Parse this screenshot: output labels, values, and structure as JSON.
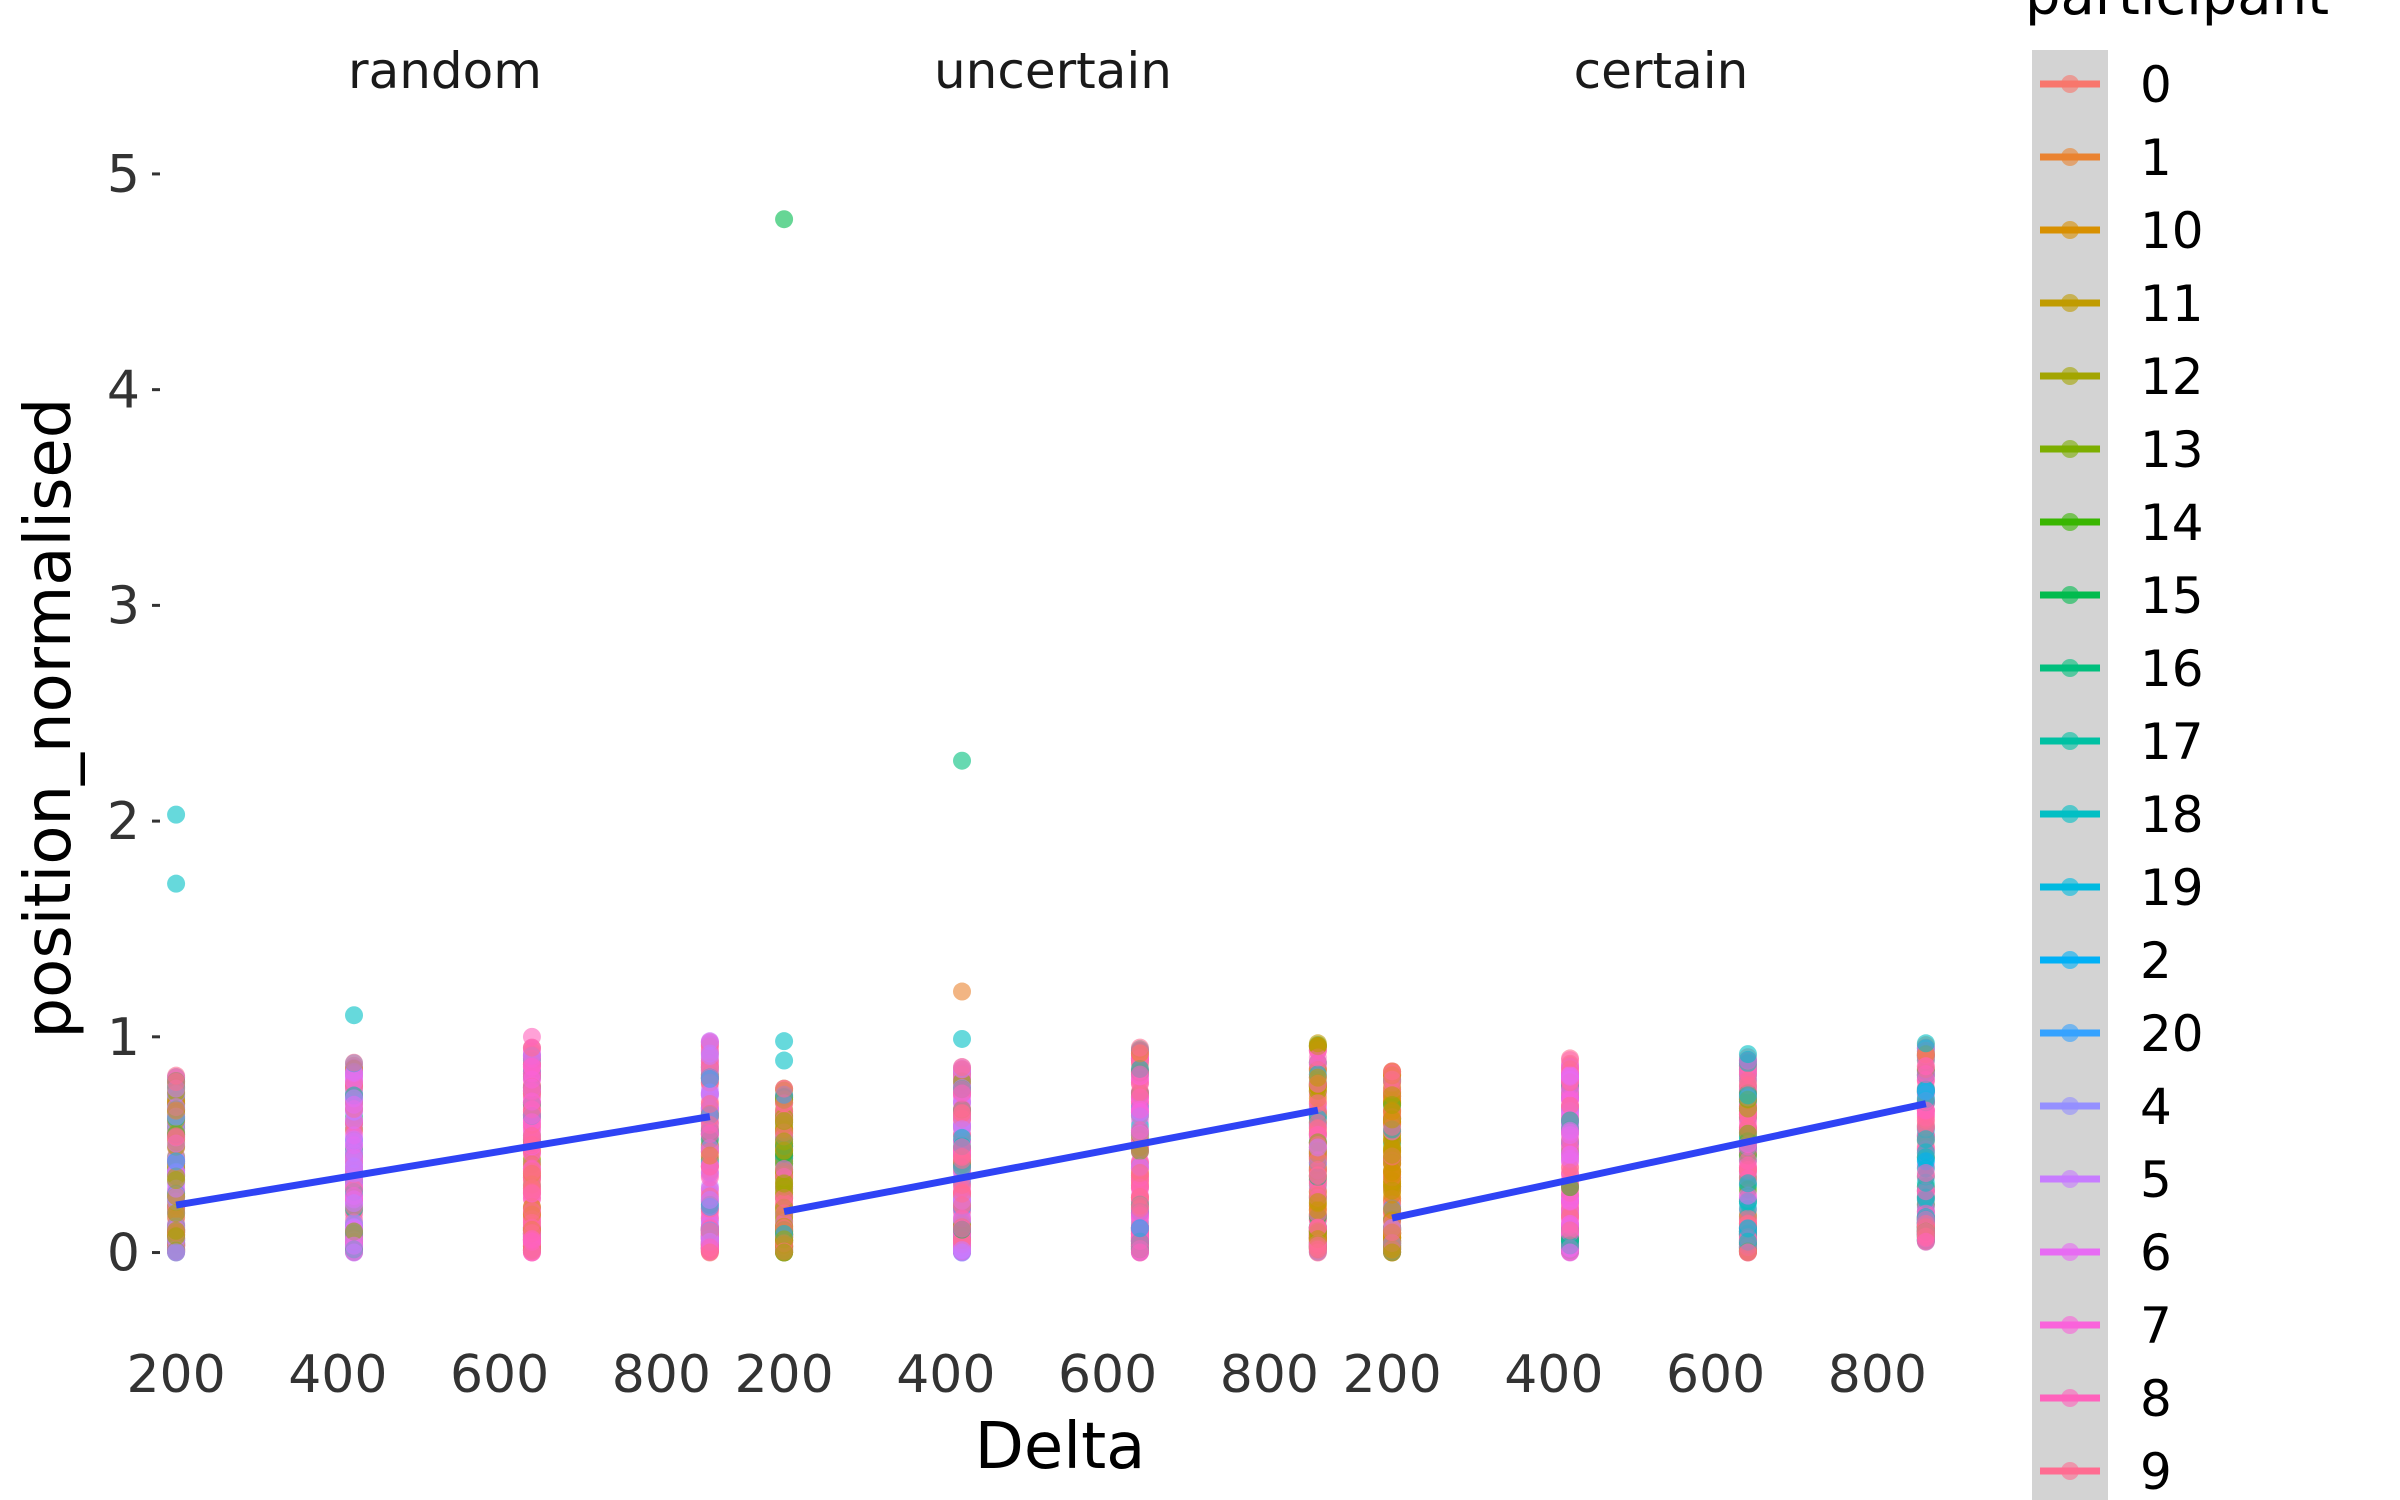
{
  "chart_data": {
    "type": "scatter",
    "xlabel": "Delta",
    "ylabel": "position_normalised",
    "xlim": [
      190,
      875
    ],
    "ylim": [
      -0.22,
      5.25
    ],
    "x_ticks": [
      200,
      400,
      600,
      800
    ],
    "y_ticks": [
      0,
      1,
      2,
      3,
      4,
      5
    ],
    "x_levels": [
      200,
      420,
      640,
      860
    ],
    "legend": {
      "title": "participant",
      "entries": [
        "0",
        "1",
        "10",
        "11",
        "12",
        "13",
        "14",
        "15",
        "16",
        "17",
        "18",
        "19",
        "2",
        "20",
        "4",
        "5",
        "6",
        "7",
        "8",
        "9"
      ],
      "colors": [
        "#F8766D",
        "#EA8331",
        "#D89000",
        "#C09B00",
        "#A3A500",
        "#7CAE00",
        "#39B600",
        "#00BB4E",
        "#00BF7D",
        "#00C1A3",
        "#00BFC4",
        "#00BAE0",
        "#00B0F6",
        "#35A2FF",
        "#9590FF",
        "#C77CFF",
        "#E76BF3",
        "#FA62DB",
        "#FF62BC",
        "#FF6C91"
      ]
    },
    "fit_color": "#2f43f5",
    "facets": [
      {
        "title": "random",
        "fit": {
          "x": [
            200,
            860
          ],
          "y": [
            0.22,
            0.63
          ]
        },
        "columns": [
          {
            "x": 200,
            "ymin": 0.0,
            "ymax": 0.82,
            "dominant": [
              "9590FF",
              "C77CFF",
              "A3A500",
              "FF6C91"
            ]
          },
          {
            "x": 420,
            "ymin": 0.0,
            "ymax": 0.88,
            "dominant": [
              "C77CFF",
              "E76BF3",
              "FF6C91"
            ]
          },
          {
            "x": 640,
            "ymin": 0.0,
            "ymax": 0.95,
            "dominant": [
              "FF62BC",
              "FA62DB",
              "FF6C91"
            ]
          },
          {
            "x": 860,
            "ymin": 0.0,
            "ymax": 0.98,
            "dominant": [
              "FF6C91",
              "FF62BC",
              "C77CFF"
            ]
          }
        ],
        "outliers": [
          {
            "x": 200,
            "y": 2.03,
            "participant": "18"
          },
          {
            "x": 200,
            "y": 1.71,
            "participant": "18"
          },
          {
            "x": 420,
            "y": 1.1,
            "participant": "18"
          },
          {
            "x": 640,
            "y": 1.0,
            "participant": "8"
          }
        ]
      },
      {
        "title": "uncertain",
        "fit": {
          "x": [
            200,
            860
          ],
          "y": [
            0.19,
            0.66
          ]
        },
        "columns": [
          {
            "x": 200,
            "ymin": 0.0,
            "ymax": 0.76,
            "dominant": [
              "A3A500",
              "C09B00",
              "FF6C91"
            ]
          },
          {
            "x": 420,
            "ymin": 0.0,
            "ymax": 0.86,
            "dominant": [
              "C77CFF",
              "FF62BC",
              "FF6C91"
            ]
          },
          {
            "x": 640,
            "ymin": 0.0,
            "ymax": 0.95,
            "dominant": [
              "FF62BC",
              "FA62DB",
              "FF6C91"
            ]
          },
          {
            "x": 860,
            "ymin": 0.0,
            "ymax": 0.97,
            "dominant": [
              "FF6C91",
              "FF62BC",
              "C09B00"
            ]
          }
        ],
        "outliers": [
          {
            "x": 200,
            "y": 4.79,
            "participant": "15"
          },
          {
            "x": 420,
            "y": 2.28,
            "participant": "16"
          },
          {
            "x": 420,
            "y": 1.21,
            "participant": "1"
          },
          {
            "x": 200,
            "y": 0.98,
            "participant": "18"
          },
          {
            "x": 200,
            "y": 0.89,
            "participant": "18"
          },
          {
            "x": 420,
            "y": 0.99,
            "participant": "18"
          }
        ]
      },
      {
        "title": "certain",
        "fit": {
          "x": [
            200,
            860
          ],
          "y": [
            0.16,
            0.69
          ]
        },
        "columns": [
          {
            "x": 200,
            "ymin": 0.0,
            "ymax": 0.84,
            "dominant": [
              "C09B00",
              "D89000",
              "FF6C91"
            ]
          },
          {
            "x": 420,
            "ymin": 0.0,
            "ymax": 0.9,
            "dominant": [
              "E76BF3",
              "FA62DB",
              "FF6C91"
            ]
          },
          {
            "x": 640,
            "ymin": 0.0,
            "ymax": 0.92,
            "dominant": [
              "FF62BC",
              "FF6C91",
              "00BFC4"
            ]
          },
          {
            "x": 860,
            "ymin": 0.05,
            "ymax": 0.97,
            "dominant": [
              "FF62BC",
              "FF6C91",
              "00BFC4"
            ]
          }
        ],
        "outliers": []
      }
    ]
  }
}
